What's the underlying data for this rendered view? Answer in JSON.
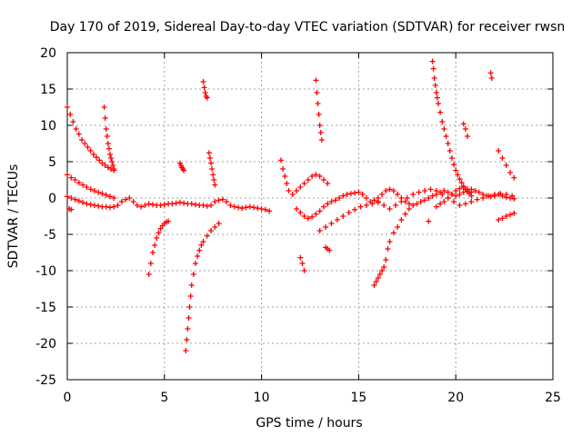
{
  "chart_data": {
    "type": "scatter",
    "title": "Day 170 of 2019, Sidereal Day-to-day VTEC variation (SDTVAR) for receiver rwsn",
    "xlabel": "GPS time / hours",
    "ylabel": "SDTVAR / TECUs",
    "xlim": [
      0,
      25
    ],
    "ylim": [
      -25,
      20
    ],
    "grid": true,
    "marker": "+",
    "x_ticks": [
      0,
      5,
      10,
      15,
      20,
      25
    ],
    "y_ticks": [
      -25,
      -20,
      -15,
      -10,
      -5,
      0,
      5,
      10,
      15,
      20
    ],
    "series": [
      {
        "name": "rwsn",
        "color": "#ff0000",
        "x": [
          0.0,
          0.15,
          0.3,
          0.45,
          0.6,
          0.75,
          0.9,
          1.05,
          1.2,
          1.35,
          1.5,
          1.65,
          1.8,
          1.95,
          2.1,
          2.25,
          2.4,
          0.0,
          0.2,
          0.4,
          0.6,
          0.8,
          1.0,
          1.2,
          1.4,
          1.6,
          1.8,
          2.0,
          2.2,
          2.4,
          0.0,
          0.2,
          0.4,
          0.6,
          0.8,
          1.0,
          1.2,
          1.4,
          1.6,
          1.8,
          2.0,
          2.2,
          2.4,
          2.6,
          2.8,
          3.0,
          3.2,
          3.4,
          3.6,
          3.8,
          4.0,
          4.2,
          4.4,
          4.6,
          4.8,
          5.0,
          5.2,
          5.4,
          5.6,
          5.8,
          6.0,
          6.2,
          6.4,
          6.6,
          6.8,
          7.0,
          7.2,
          7.4,
          7.6,
          7.8,
          8.0,
          8.2,
          8.4,
          8.6,
          8.8,
          9.0,
          9.2,
          9.4,
          9.6,
          9.8,
          10.0,
          10.2,
          10.4,
          0.1,
          0.2,
          1.9,
          1.95,
          2.0,
          2.05,
          2.1,
          2.15,
          2.2,
          2.25,
          2.3,
          2.35,
          2.4,
          4.2,
          4.3,
          4.4,
          4.5,
          4.6,
          4.7,
          4.8,
          4.9,
          5.0,
          5.1,
          5.2,
          5.8,
          5.85,
          5.9,
          5.95,
          6.0,
          6.1,
          6.15,
          6.2,
          6.25,
          6.3,
          6.35,
          6.4,
          6.5,
          6.6,
          6.7,
          6.8,
          6.9,
          7.0,
          7.2,
          7.4,
          7.6,
          7.8,
          7.0,
          7.05,
          7.1,
          7.15,
          7.2,
          7.3,
          7.35,
          7.4,
          7.45,
          7.5,
          7.55,
          7.6,
          11.0,
          11.1,
          11.2,
          11.3,
          11.4,
          11.6,
          11.8,
          12.0,
          12.2,
          12.4,
          12.6,
          12.8,
          13.0,
          13.2,
          13.4,
          11.8,
          12.0,
          12.2,
          12.4,
          12.6,
          12.8,
          13.0,
          13.2,
          13.4,
          13.6,
          13.8,
          14.0,
          14.2,
          14.4,
          14.6,
          14.8,
          15.0,
          15.2,
          15.4,
          15.6,
          15.8,
          16.0,
          16.2,
          16.4,
          16.6,
          16.8,
          17.0,
          17.2,
          17.4,
          17.6,
          17.8,
          18.0,
          18.2,
          18.4,
          18.6,
          18.8,
          19.0,
          19.2,
          19.4,
          19.6,
          19.8,
          20.0,
          20.2,
          20.4,
          20.6,
          20.8,
          21.0,
          21.2,
          21.4,
          21.6,
          21.8,
          22.0,
          22.2,
          22.4,
          22.6,
          22.8,
          23.0,
          12.0,
          12.1,
          12.2,
          12.8,
          12.85,
          12.9,
          12.95,
          13.0,
          13.05,
          13.1,
          13.3,
          13.4,
          13.5,
          13.0,
          13.3,
          13.6,
          13.9,
          14.2,
          14.5,
          14.8,
          15.1,
          15.4,
          15.7,
          16.0,
          15.8,
          15.9,
          16.0,
          16.1,
          16.2,
          16.3,
          16.4,
          16.5,
          16.6,
          16.8,
          17.0,
          17.2,
          17.4,
          17.6,
          16.0,
          16.3,
          16.6,
          16.9,
          17.2,
          17.5,
          17.8,
          18.1,
          18.4,
          18.7,
          19.0,
          19.3,
          19.6,
          19.9,
          20.2,
          20.5,
          20.8,
          21.1,
          21.4,
          21.7,
          22.0,
          22.3,
          22.6,
          22.9,
          18.6,
          18.8,
          18.85,
          18.9,
          18.95,
          19.0,
          19.05,
          19.1,
          19.2,
          19.3,
          19.4,
          19.5,
          19.6,
          19.7,
          19.8,
          19.9,
          20.0,
          20.1,
          20.2,
          20.3,
          20.4,
          20.5,
          20.6,
          20.7,
          20.8,
          19.0,
          19.2,
          19.4,
          19.6,
          19.8,
          20.0,
          20.2,
          20.4,
          20.6,
          20.8,
          20.4,
          20.5,
          20.6,
          21.8,
          21.85,
          22.2,
          22.4,
          22.6,
          22.8,
          23.0,
          22.2,
          22.4,
          22.6,
          22.8,
          23.0
        ],
        "y": [
          12.5,
          11.5,
          10.5,
          9.5,
          8.8,
          8.0,
          7.5,
          7.0,
          6.5,
          6.0,
          5.6,
          5.2,
          4.8,
          4.5,
          4.2,
          4.0,
          3.8,
          3.2,
          2.8,
          2.5,
          2.1,
          1.8,
          1.5,
          1.2,
          1.0,
          0.8,
          0.6,
          0.4,
          0.2,
          0.0,
          0.2,
          0.0,
          -0.2,
          -0.4,
          -0.6,
          -0.8,
          -0.9,
          -1.0,
          -1.1,
          -1.2,
          -1.2,
          -1.3,
          -1.2,
          -1.0,
          -0.5,
          -0.2,
          0.0,
          -0.5,
          -1.0,
          -1.2,
          -1.0,
          -0.8,
          -0.9,
          -1.0,
          -1.0,
          -0.9,
          -0.8,
          -0.8,
          -0.7,
          -0.6,
          -0.7,
          -0.8,
          -0.8,
          -0.9,
          -1.0,
          -1.0,
          -1.1,
          -1.0,
          -0.5,
          -0.3,
          -0.2,
          -0.5,
          -1.0,
          -1.2,
          -1.3,
          -1.4,
          -1.3,
          -1.2,
          -1.3,
          -1.4,
          -1.5,
          -1.6,
          -1.8,
          -1.5,
          -1.6,
          12.5,
          11.0,
          9.5,
          8.5,
          7.5,
          6.8,
          6.0,
          5.5,
          5.0,
          4.5,
          4.0,
          -10.5,
          -9.0,
          -7.5,
          -6.5,
          -5.5,
          -4.8,
          -4.2,
          -3.8,
          -3.5,
          -3.3,
          -3.2,
          4.8,
          4.5,
          4.2,
          4.0,
          3.8,
          -21.0,
          -19.5,
          -18.0,
          -16.5,
          -15.0,
          -13.5,
          -12.0,
          -10.5,
          -9.0,
          -8.0,
          -7.2,
          -6.5,
          -6.0,
          -5.2,
          -4.5,
          -4.0,
          -3.5,
          16.0,
          15.2,
          14.5,
          14.0,
          13.8,
          6.2,
          5.5,
          4.8,
          4.0,
          3.2,
          2.5,
          1.8,
          5.2,
          4.0,
          3.0,
          2.0,
          1.0,
          0.5,
          1.0,
          1.5,
          2.0,
          2.5,
          3.0,
          3.2,
          3.0,
          2.5,
          2.0,
          -1.5,
          -2.0,
          -2.5,
          -2.8,
          -2.6,
          -2.2,
          -1.8,
          -1.2,
          -0.8,
          -0.5,
          -0.3,
          0.0,
          0.3,
          0.5,
          0.6,
          0.7,
          0.8,
          0.5,
          0.0,
          -0.5,
          -0.3,
          0.0,
          0.5,
          1.0,
          1.2,
          1.0,
          0.5,
          0.0,
          -0.5,
          -0.8,
          -1.0,
          -0.8,
          -0.5,
          -0.3,
          0.0,
          0.3,
          0.5,
          0.8,
          1.0,
          0.8,
          0.5,
          0.3,
          0.5,
          0.8,
          1.0,
          1.2,
          1.0,
          0.8,
          0.5,
          0.3,
          0.2,
          0.3,
          0.5,
          0.3,
          0.1,
          0.0,
          -0.1,
          -8.2,
          -9.0,
          -10.0,
          16.2,
          14.5,
          13.0,
          11.5,
          10.0,
          9.0,
          8.0,
          -6.8,
          -7.0,
          -7.2,
          -4.5,
          -4.0,
          -3.5,
          -3.0,
          -2.5,
          -2.0,
          -1.6,
          -1.2,
          -1.0,
          -0.8,
          -0.6,
          -12.0,
          -11.5,
          -11.0,
          -10.5,
          -10.0,
          -9.5,
          -8.5,
          -7.0,
          -6.0,
          -4.8,
          -4.0,
          -3.0,
          -2.2,
          -1.5,
          -0.5,
          -1.0,
          -1.5,
          -1.0,
          -0.5,
          0.0,
          0.5,
          0.8,
          1.0,
          1.2,
          1.0,
          0.5,
          0.0,
          -0.5,
          -1.0,
          -0.8,
          -0.5,
          -0.2,
          0.0,
          0.3,
          0.5,
          0.6,
          0.5,
          0.3,
          -3.2,
          18.8,
          17.8,
          16.5,
          15.5,
          14.5,
          13.8,
          13.0,
          11.8,
          10.5,
          9.5,
          8.5,
          7.5,
          6.5,
          5.5,
          4.6,
          3.8,
          3.2,
          2.6,
          2.1,
          1.6,
          1.2,
          0.9,
          0.6,
          0.3,
          -1.2,
          -0.8,
          -0.5,
          0.0,
          0.5,
          1.0,
          1.3,
          1.5,
          1.2,
          0.8,
          10.2,
          9.5,
          8.5,
          17.2,
          16.5,
          6.5,
          5.5,
          4.5,
          3.5,
          2.8,
          -3.0,
          -2.8,
          -2.5,
          -2.3,
          -2.1
        ]
      }
    ]
  }
}
